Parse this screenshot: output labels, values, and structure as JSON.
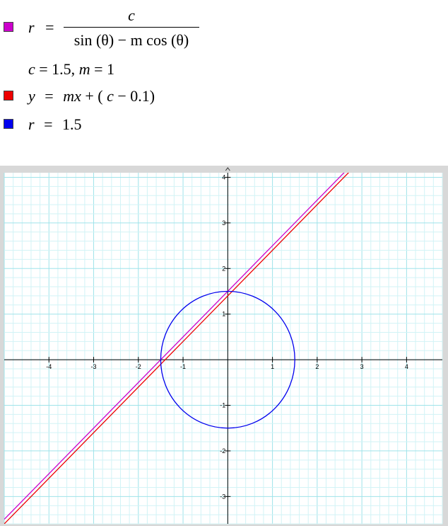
{
  "equations": [
    {
      "color": "#cc00cc",
      "lhs": "r",
      "eq": "=",
      "numerator": "c",
      "denominator": "sin (θ) − m cos (θ)"
    },
    {
      "text_c": "c",
      "text_eq1": "= 1.5,",
      "text_m": "m",
      "text_eq2": "= 1"
    },
    {
      "color": "#ee0000",
      "lhs": "y",
      "eq": "=",
      "rhs_mx": "mx",
      "rhs_rest": "+ (",
      "rhs_c": "c",
      "rhs_end": "− 0.1)"
    },
    {
      "color": "#0000ee",
      "lhs": "r",
      "eq": "=",
      "rhs": "1.5"
    }
  ],
  "chart_data": {
    "type": "line",
    "title": "",
    "xlabel": "",
    "ylabel": "",
    "xlim": [
      -5,
      4.8
    ],
    "ylim": [
      -3.6,
      4.1
    ],
    "grid": true,
    "x_ticks": [
      -4,
      -3,
      -2,
      -1,
      1,
      2,
      3,
      4
    ],
    "y_ticks": [
      -3,
      -2,
      -1,
      1,
      2,
      3,
      4
    ],
    "parameters": {
      "c": 1.5,
      "m": 1
    },
    "series": [
      {
        "color": "#cc00cc",
        "kind": "line",
        "slope": 1,
        "intercept": 1.5
      },
      {
        "color": "#ee0000",
        "kind": "line",
        "slope": 1,
        "intercept": 1.4
      },
      {
        "color": "#0000ee",
        "kind": "circle",
        "center": [
          0,
          0
        ],
        "radius": 1.5
      }
    ]
  }
}
